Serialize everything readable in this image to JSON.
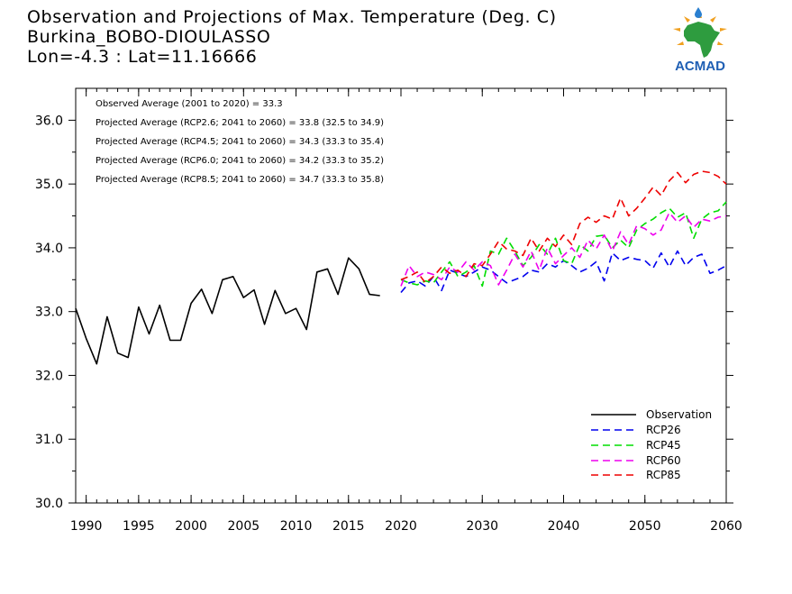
{
  "header": {
    "title": "Observation and Projections of Max. Temperature (Deg. C)",
    "location": "Burkina_BOBO-DIOULASSO",
    "coords": "Lon=-4.3 : Lat=11.16666"
  },
  "logo": {
    "text": "ACMAD",
    "color_text": "#1f5fb4",
    "color_africa": "#2e9c3f",
    "color_rays": "#f0a020"
  },
  "annotations": [
    "Observed Average (2001 to 2020) = 33.3",
    "Projected Average (RCP2.6; 2041 to 2060) = 33.8 (32.5 to 34.9)",
    "Projected Average (RCP4.5; 2041 to 2060) = 34.3 (33.3 to 35.4)",
    "Projected Average (RCP6.0; 2041 to 2060) = 34.2 (33.3 to 35.2)",
    "Projected Average (RCP8.5; 2041 to 2060) = 34.7 (33.3 to 35.8)"
  ],
  "chart_data": {
    "type": "line",
    "xlim": [
      1989,
      2060
    ],
    "ylim": [
      30.0,
      36.5
    ],
    "x_ticks_left": [
      1990,
      1995,
      2000,
      2005,
      2010,
      2015,
      2020
    ],
    "x_ticks_right": [
      2020,
      2030,
      2040,
      2050,
      2060
    ],
    "y_ticks": [
      "30.0",
      "31.0",
      "32.0",
      "33.0",
      "34.0",
      "35.0",
      "36.0"
    ],
    "legend_position": "bottom-right",
    "grid": false,
    "series": [
      {
        "name": "Observation",
        "color": "#000000",
        "dash": "",
        "x": [
          1989,
          1990,
          1991,
          1992,
          1993,
          1994,
          1995,
          1996,
          1997,
          1998,
          1999,
          2000,
          2001,
          2002,
          2003,
          2004,
          2005,
          2006,
          2007,
          2008,
          2009,
          2010,
          2011,
          2012,
          2013,
          2014,
          2015,
          2016,
          2017,
          2018,
          2019
        ],
        "y": [
          33.05,
          32.58,
          32.18,
          32.92,
          32.35,
          32.28,
          33.07,
          32.65,
          33.1,
          32.55,
          32.55,
          33.13,
          33.35,
          32.97,
          33.5,
          33.55,
          33.22,
          33.34,
          32.8,
          33.33,
          32.97,
          33.05,
          32.72,
          33.62,
          33.67,
          33.27,
          33.84,
          33.67,
          33.27,
          33.25,
          null
        ]
      },
      {
        "name": "RCP26",
        "color": "#0000ee",
        "dash": "8,5",
        "x": [
          2020,
          2021,
          2022,
          2023,
          2024,
          2025,
          2026,
          2027,
          2028,
          2029,
          2030,
          2031,
          2032,
          2033,
          2034,
          2035,
          2036,
          2037,
          2038,
          2039,
          2040,
          2041,
          2042,
          2043,
          2044,
          2045,
          2046,
          2047,
          2048,
          2049,
          2050,
          2051,
          2052,
          2053,
          2054,
          2055,
          2056,
          2057,
          2058,
          2059,
          2060
        ],
        "y": [
          33.3,
          33.45,
          33.48,
          33.4,
          33.55,
          33.33,
          33.65,
          33.6,
          33.55,
          33.62,
          33.7,
          33.65,
          33.55,
          33.45,
          33.5,
          33.55,
          33.65,
          33.62,
          33.75,
          33.7,
          33.8,
          33.72,
          33.62,
          33.68,
          33.78,
          33.48,
          33.92,
          33.8,
          33.85,
          33.82,
          33.8,
          33.68,
          33.92,
          33.7,
          33.95,
          33.72,
          33.85,
          33.9,
          33.6,
          33.65,
          33.72
        ]
      },
      {
        "name": "RCP45",
        "color": "#00dd00",
        "dash": "8,5",
        "x": [
          2020,
          2021,
          2022,
          2023,
          2024,
          2025,
          2026,
          2027,
          2028,
          2029,
          2030,
          2031,
          2032,
          2033,
          2034,
          2035,
          2036,
          2037,
          2038,
          2039,
          2040,
          2041,
          2042,
          2043,
          2044,
          2045,
          2046,
          2047,
          2048,
          2049,
          2050,
          2051,
          2052,
          2053,
          2054,
          2055,
          2056,
          2057,
          2058,
          2059,
          2060
        ],
        "y": [
          33.5,
          33.45,
          33.42,
          33.48,
          33.45,
          33.62,
          33.78,
          33.55,
          33.62,
          33.72,
          33.4,
          33.95,
          33.9,
          34.15,
          33.95,
          33.72,
          33.85,
          34.05,
          33.9,
          34.15,
          33.8,
          33.75,
          34.05,
          33.95,
          34.18,
          34.2,
          34.0,
          34.12,
          34.0,
          34.28,
          34.38,
          34.45,
          34.55,
          34.62,
          34.48,
          34.55,
          34.15,
          34.45,
          34.55,
          34.58,
          34.72
        ]
      },
      {
        "name": "RCP60",
        "color": "#ee00ee",
        "dash": "8,5",
        "x": [
          2020,
          2021,
          2022,
          2023,
          2024,
          2025,
          2026,
          2027,
          2028,
          2029,
          2030,
          2031,
          2032,
          2033,
          2034,
          2035,
          2036,
          2037,
          2038,
          2039,
          2040,
          2041,
          2042,
          2043,
          2044,
          2045,
          2046,
          2047,
          2048,
          2049,
          2050,
          2051,
          2052,
          2053,
          2054,
          2055,
          2056,
          2057,
          2058,
          2059,
          2060
        ],
        "y": [
          33.4,
          33.72,
          33.55,
          33.62,
          33.58,
          33.5,
          33.7,
          33.62,
          33.78,
          33.65,
          33.78,
          33.72,
          33.42,
          33.65,
          33.9,
          33.7,
          33.95,
          33.65,
          34.0,
          33.75,
          33.88,
          34.0,
          33.85,
          34.12,
          33.98,
          34.2,
          33.95,
          34.25,
          34.05,
          34.35,
          34.3,
          34.2,
          34.28,
          34.55,
          34.4,
          34.5,
          34.32,
          34.45,
          34.42,
          34.48,
          34.5
        ]
      },
      {
        "name": "RCP85",
        "color": "#ee0000",
        "dash": "8,5",
        "x": [
          2020,
          2021,
          2022,
          2023,
          2024,
          2025,
          2026,
          2027,
          2028,
          2029,
          2030,
          2031,
          2032,
          2033,
          2034,
          2035,
          2036,
          2037,
          2038,
          2039,
          2040,
          2041,
          2042,
          2043,
          2044,
          2045,
          2046,
          2047,
          2048,
          2049,
          2050,
          2051,
          2052,
          2053,
          2054,
          2055,
          2056,
          2057,
          2058,
          2059,
          2060
        ],
        "y": [
          33.5,
          33.55,
          33.62,
          33.45,
          33.55,
          33.7,
          33.6,
          33.65,
          33.55,
          33.75,
          33.72,
          33.9,
          34.1,
          33.98,
          33.95,
          33.88,
          34.15,
          33.95,
          34.15,
          34.02,
          34.2,
          34.05,
          34.38,
          34.48,
          34.4,
          34.5,
          34.45,
          34.78,
          34.5,
          34.62,
          34.78,
          34.95,
          34.82,
          35.05,
          35.18,
          35.02,
          35.15,
          35.2,
          35.18,
          35.12,
          35.0
        ]
      }
    ]
  }
}
